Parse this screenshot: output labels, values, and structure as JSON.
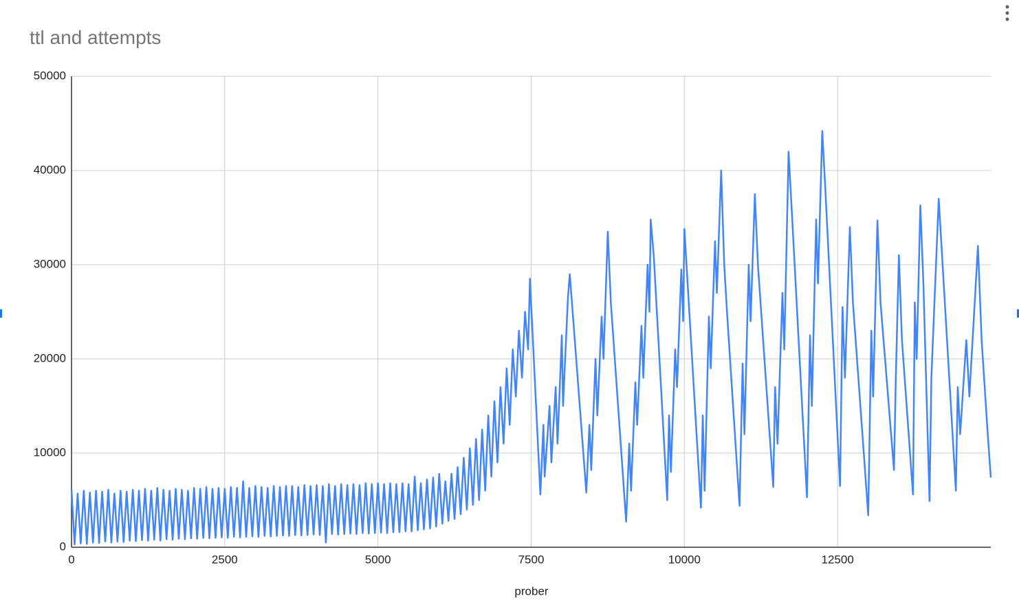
{
  "chart_data": {
    "type": "line",
    "title": "ttl and attempts",
    "x_label": "prober",
    "color": "#4285f4",
    "grid": true,
    "xlim": [
      0,
      15000
    ],
    "xticks": [
      0,
      2500,
      5000,
      7500,
      10000,
      12500
    ],
    "ylim": [
      0,
      50000
    ],
    "yticks": [
      0,
      10000,
      20000,
      30000,
      40000,
      50000
    ],
    "x": [
      0,
      50,
      100,
      150,
      200,
      250,
      300,
      350,
      400,
      450,
      500,
      550,
      600,
      650,
      700,
      750,
      800,
      850,
      900,
      950,
      1000,
      1050,
      1100,
      1150,
      1200,
      1250,
      1300,
      1350,
      1400,
      1450,
      1500,
      1550,
      1600,
      1650,
      1700,
      1750,
      1800,
      1850,
      1900,
      1950,
      2000,
      2050,
      2100,
      2150,
      2200,
      2250,
      2300,
      2350,
      2400,
      2450,
      2500,
      2550,
      2600,
      2650,
      2700,
      2750,
      2800,
      2850,
      2900,
      2950,
      3000,
      3050,
      3100,
      3150,
      3200,
      3250,
      3300,
      3350,
      3400,
      3450,
      3500,
      3550,
      3600,
      3650,
      3700,
      3750,
      3800,
      3850,
      3900,
      3950,
      4000,
      4050,
      4100,
      4150,
      4200,
      4250,
      4300,
      4350,
      4400,
      4450,
      4500,
      4550,
      4600,
      4650,
      4700,
      4750,
      4800,
      4850,
      4900,
      4950,
      5000,
      5050,
      5100,
      5150,
      5200,
      5250,
      5300,
      5350,
      5400,
      5450,
      5500,
      5550,
      5600,
      5650,
      5700,
      5750,
      5800,
      5850,
      5900,
      5950,
      6000,
      6050,
      6100,
      6150,
      6200,
      6250,
      6300,
      6350,
      6400,
      6450,
      6500,
      6550,
      6600,
      6650,
      6700,
      6750,
      6800,
      6850,
      6900,
      6950,
      7000,
      7050,
      7100,
      7150,
      7200,
      7250,
      7300,
      7350,
      7400,
      7450,
      7480,
      7650,
      7700,
      7720,
      7800,
      7830,
      7900,
      7930,
      8000,
      8020,
      8100,
      8130,
      8400,
      8450,
      8480,
      8550,
      8580,
      8650,
      8680,
      8750,
      8800,
      9050,
      9100,
      9130,
      9200,
      9230,
      9300,
      9330,
      9400,
      9430,
      9450,
      9500,
      9720,
      9750,
      9780,
      9850,
      9880,
      9950,
      9980,
      10000,
      10270,
      10300,
      10330,
      10400,
      10430,
      10500,
      10530,
      10600,
      10650,
      10700,
      10900,
      10950,
      10980,
      11050,
      11080,
      11150,
      11200,
      11450,
      11480,
      11520,
      11600,
      11630,
      11700,
      11750,
      12000,
      12050,
      12080,
      12150,
      12180,
      12250,
      12300,
      12540,
      12580,
      12620,
      12700,
      12750,
      13000,
      13050,
      13080,
      13150,
      13200,
      13420,
      13450,
      13500,
      13550,
      13730,
      13760,
      13790,
      13850,
      13900,
      14000,
      14030,
      14080,
      14150,
      14430,
      14460,
      14500,
      14600,
      14650,
      14790,
      14850,
      14950,
      15000
    ],
    "values": [
      6100,
      300,
      5700,
      400,
      6000,
      350,
      5800,
      500,
      6000,
      450,
      5900,
      600,
      6100,
      500,
      5700,
      600,
      6000,
      550,
      5900,
      700,
      6100,
      650,
      6000,
      750,
      6200,
      700,
      6000,
      800,
      6300,
      700,
      6100,
      850,
      6000,
      800,
      6200,
      900,
      6100,
      850,
      6000,
      950,
      6300,
      900,
      6200,
      1000,
      6400,
      950,
      6200,
      1000,
      6300,
      1050,
      6200,
      1000,
      6400,
      1100,
      6300,
      1050,
      7000,
      1100,
      6300,
      1150,
      6500,
      1100,
      6400,
      1200,
      6300,
      1150,
      6500,
      1200,
      6400,
      1250,
      6500,
      1200,
      6500,
      1300,
      6400,
      1250,
      6600,
      1300,
      6500,
      1350,
      6600,
      1300,
      6500,
      500,
      6700,
      1400,
      6500,
      1350,
      6700,
      1400,
      6600,
      1450,
      6700,
      1400,
      6600,
      1500,
      6800,
      1450,
      6700,
      1500,
      6800,
      1550,
      6700,
      1500,
      6800,
      1600,
      6700,
      1600,
      6800,
      1700,
      6700,
      1700,
      7500,
      1800,
      6800,
      1900,
      7200,
      2000,
      7400,
      2200,
      7800,
      2500,
      7000,
      2800,
      7800,
      3000,
      8500,
      3500,
      9500,
      4000,
      10500,
      4500,
      11500,
      5000,
      12500,
      6000,
      14000,
      7500,
      15500,
      9000,
      17000,
      11000,
      19000,
      13000,
      21000,
      16000,
      23000,
      18000,
      25000,
      21000,
      28500,
      5600,
      13000,
      7500,
      15000,
      9000,
      17000,
      11000,
      22500,
      15000,
      26500,
      29000,
      5800,
      13000,
      8200,
      20000,
      14000,
      24500,
      20000,
      33500,
      26000,
      2700,
      11000,
      6000,
      17500,
      13000,
      23500,
      18000,
      30000,
      25000,
      34800,
      31000,
      5000,
      14000,
      8000,
      21000,
      17000,
      29500,
      24000,
      33800,
      4200,
      14000,
      6000,
      24500,
      19000,
      32500,
      27000,
      40000,
      30000,
      24500,
      4400,
      19500,
      12000,
      30000,
      24000,
      37500,
      30000,
      6400,
      17000,
      11000,
      27000,
      21000,
      42000,
      36000,
      5300,
      22500,
      15000,
      34800,
      28000,
      44200,
      38000,
      6500,
      25500,
      18000,
      34000,
      26000,
      3400,
      23000,
      16000,
      34700,
      26000,
      8200,
      18000,
      31000,
      22000,
      5600,
      26000,
      20000,
      36300,
      28000,
      4900,
      18000,
      26000,
      37000,
      6000,
      17000,
      12000,
      22000,
      16000,
      32000,
      22000,
      12000,
      7400
    ]
  }
}
